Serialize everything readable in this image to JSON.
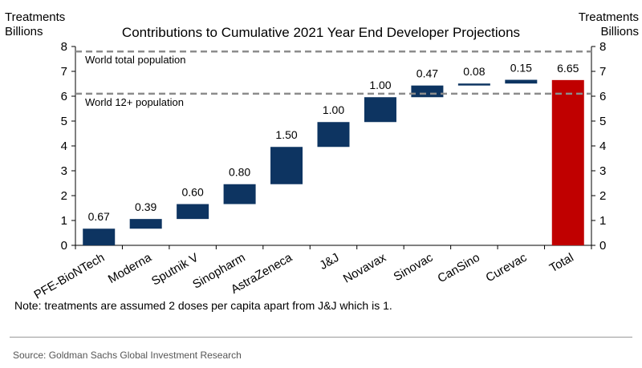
{
  "chart_data": {
    "type": "bar",
    "subtype": "waterfall",
    "title": "Contributions to Cumulative 2021 Year End Developer Projections",
    "left_axis_title": [
      "Treatments",
      "Billions"
    ],
    "right_axis_title": [
      "Treatments",
      "Billions"
    ],
    "ylim": [
      0,
      8
    ],
    "yticks": [
      0,
      1,
      2,
      3,
      4,
      5,
      6,
      7,
      8
    ],
    "categories": [
      "PFE-BioNTech",
      "Moderna",
      "Sputnik V",
      "Sinopharm",
      "AstraZeneca",
      "J&J",
      "Novavax",
      "Sinovac",
      "CanSino",
      "Curevac",
      "Total"
    ],
    "values": [
      0.67,
      0.39,
      0.6,
      0.8,
      1.5,
      1.0,
      1.0,
      0.47,
      0.08,
      0.15,
      6.65
    ],
    "value_labels": [
      "0.67",
      "0.39",
      "0.60",
      "0.80",
      "1.50",
      "1.00",
      "1.00",
      "0.47",
      "0.08",
      "0.15",
      "6.65"
    ],
    "total_index": 10,
    "reference_lines": [
      {
        "label": "World total population",
        "value": 7.8
      },
      {
        "label": "World 12+ population",
        "value": 6.1
      }
    ],
    "colors": {
      "bar": "#0d3461",
      "total": "#c00000",
      "reference": "#8c8c8c"
    }
  },
  "note": "Note: treatments are assumed 2 doses per capita apart from J&J which is 1.",
  "source": "Source: Goldman Sachs Global Investment Research"
}
